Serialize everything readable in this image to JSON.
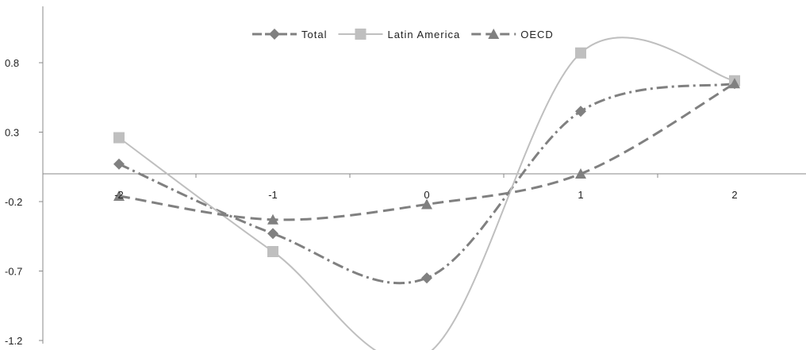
{
  "chart_data": {
    "type": "line",
    "x": [
      -2,
      -1,
      0,
      1,
      2
    ],
    "x_tick_labels": [
      "-2",
      "-1",
      "0",
      "1",
      "2"
    ],
    "y_tick_labels": [
      "0.8",
      "0.3",
      "-0.2",
      "-0.7",
      "-1.2"
    ],
    "y_ticks": [
      0.8,
      0.3,
      -0.2,
      -0.7,
      -1.2
    ],
    "ylim": [
      -1.2,
      1.1
    ],
    "xlim": [
      -2.5,
      2.5
    ],
    "grid": false,
    "legend_position": "top-center",
    "series": [
      {
        "name": "Total",
        "values": [
          0.07,
          -0.43,
          -0.75,
          0.45,
          0.65
        ],
        "color": "#808080",
        "line_style": "dash-dot",
        "marker": "diamond",
        "smooth": true
      },
      {
        "name": "Latin America",
        "values": [
          0.26,
          -0.56,
          -1.3,
          0.87,
          0.67
        ],
        "color": "#bfbfbf",
        "line_style": "solid",
        "marker": "square",
        "smooth": true
      },
      {
        "name": "OECD",
        "values": [
          -0.16,
          -0.33,
          -0.22,
          0.0,
          0.65
        ],
        "color": "#808080",
        "line_style": "dashed",
        "marker": "triangle",
        "smooth": true
      }
    ]
  }
}
